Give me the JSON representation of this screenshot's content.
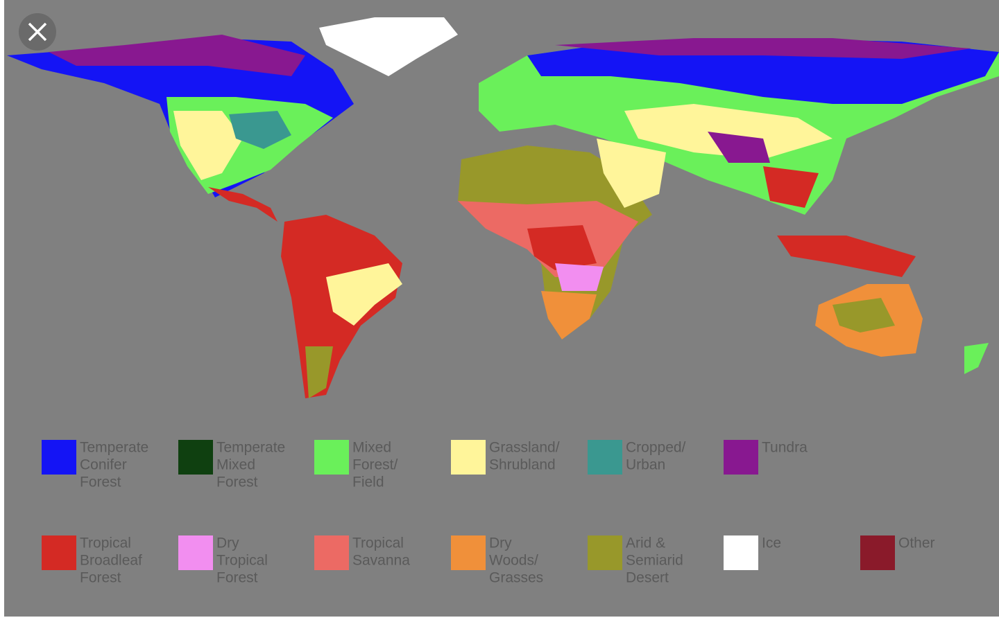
{
  "legend": [
    {
      "color": "#1414f5",
      "lines": [
        "Temperate",
        "Conifer",
        "Forest"
      ]
    },
    {
      "color": "#0f4010",
      "lines": [
        "Temperate",
        "Mixed",
        "Forest"
      ]
    },
    {
      "color": "#6af05a",
      "lines": [
        "Mixed",
        "Forest/",
        "Field"
      ]
    },
    {
      "color": "#fff59a",
      "lines": [
        "Grassland/",
        "Shrubland"
      ]
    },
    {
      "color": "#3a9890",
      "lines": [
        "Cropped/",
        "Urban"
      ]
    },
    {
      "color": "#881890",
      "lines": [
        "Tundra"
      ]
    },
    {
      "color": "#d42a24",
      "lines": [
        "Tropical",
        "Broadleaf",
        "Forest"
      ]
    },
    {
      "color": "#f28ef0",
      "lines": [
        "Dry",
        "Tropical",
        "Forest"
      ]
    },
    {
      "color": "#ec6a64",
      "lines": [
        "Tropical",
        "Savanna"
      ]
    },
    {
      "color": "#f0903a",
      "lines": [
        "Dry",
        "Woods/",
        "Grasses"
      ]
    },
    {
      "color": "#98982a",
      "lines": [
        "Arid &",
        "Semiarid",
        "Desert"
      ]
    },
    {
      "color": "#ffffff",
      "lines": [
        "Ice"
      ]
    },
    {
      "color": "#8a1a2a",
      "lines": [
        "Other"
      ]
    }
  ]
}
